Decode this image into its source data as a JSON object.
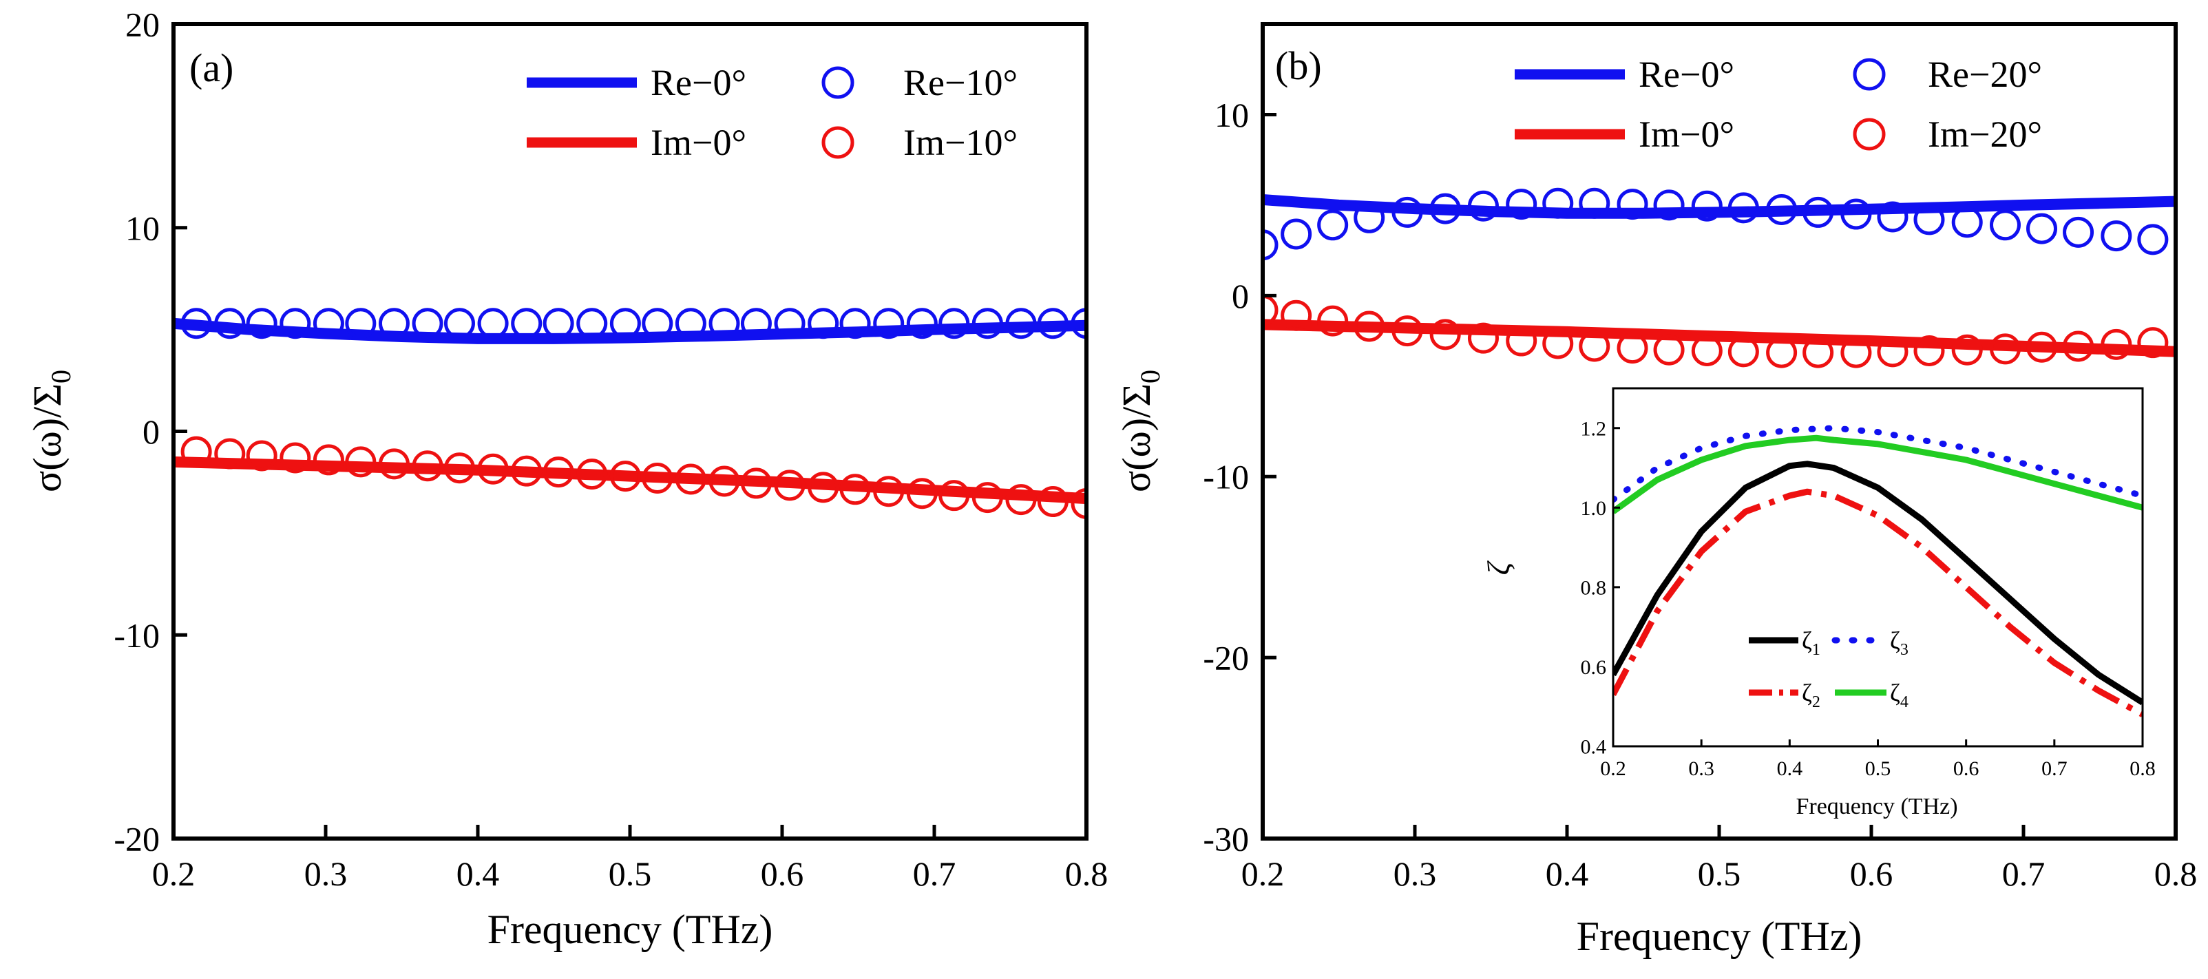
{
  "figure": {
    "panel_a": {
      "label": "(a)",
      "ylabel_main": "σ(ω)/Σ",
      "ylabel_sub": "0",
      "xlabel": "Frequency (THz)",
      "legend": [
        "Re−0°",
        "Im−0°",
        "Re−10°",
        "Im−10°"
      ]
    },
    "panel_b": {
      "label": "(b)",
      "ylabel_main": "σ(ω)/Σ",
      "ylabel_sub": "0",
      "xlabel": "Frequency (THz)",
      "legend": [
        "Re−0°",
        "Im−0°",
        "Re−20°",
        "Im−20°"
      ]
    },
    "inset": {
      "ylabel": "ζ",
      "xlabel": "Frequency (THz)",
      "legend": [
        {
          "main": "ζ",
          "sub": "1"
        },
        {
          "main": "ζ",
          "sub": "3"
        },
        {
          "main": "ζ",
          "sub": "2"
        },
        {
          "main": "ζ",
          "sub": "4"
        }
      ]
    }
  },
  "chart_data": [
    {
      "type": "line",
      "panel": "a",
      "title": "(a)",
      "xlabel": "Frequency (THz)",
      "ylabel": "σ(ω)/Σ0",
      "xlim": [
        0.2,
        0.8
      ],
      "ylim": [
        -20,
        20
      ],
      "xticks": [
        0.2,
        0.3,
        0.4,
        0.5,
        0.6,
        0.7,
        0.8
      ],
      "yticks": [
        -20,
        -10,
        0,
        10,
        20
      ],
      "legend_position": "top-right",
      "series": [
        {
          "name": "Re−0°",
          "style": "line",
          "color": "#1010f0",
          "x": [
            0.2,
            0.25,
            0.3,
            0.35,
            0.4,
            0.45,
            0.5,
            0.55,
            0.6,
            0.65,
            0.7,
            0.75,
            0.8
          ],
          "y": [
            5.3,
            5.0,
            4.8,
            4.65,
            4.55,
            4.55,
            4.6,
            4.68,
            4.78,
            4.88,
            5.0,
            5.1,
            5.2
          ]
        },
        {
          "name": "Im−0°",
          "style": "line",
          "color": "#ee1111",
          "x": [
            0.2,
            0.3,
            0.4,
            0.5,
            0.6,
            0.7,
            0.8
          ],
          "y": [
            -1.5,
            -1.7,
            -1.9,
            -2.2,
            -2.5,
            -2.9,
            -3.3
          ]
        },
        {
          "name": "Re−10°",
          "style": "circle",
          "color": "#1010f0",
          "x": [
            0.215,
            0.237,
            0.258,
            0.28,
            0.302,
            0.323,
            0.345,
            0.367,
            0.388,
            0.41,
            0.432,
            0.453,
            0.475,
            0.497,
            0.518,
            0.54,
            0.562,
            0.583,
            0.605,
            0.627,
            0.648,
            0.67,
            0.692,
            0.713,
            0.735,
            0.757,
            0.778,
            0.8
          ],
          "y": [
            5.3,
            5.3,
            5.3,
            5.3,
            5.3,
            5.3,
            5.3,
            5.3,
            5.3,
            5.3,
            5.3,
            5.3,
            5.3,
            5.3,
            5.3,
            5.3,
            5.3,
            5.3,
            5.3,
            5.3,
            5.3,
            5.3,
            5.3,
            5.3,
            5.3,
            5.3,
            5.3,
            5.3
          ]
        },
        {
          "name": "Im−10°",
          "style": "circle",
          "color": "#ee1111",
          "x": [
            0.215,
            0.237,
            0.258,
            0.28,
            0.302,
            0.323,
            0.345,
            0.367,
            0.388,
            0.41,
            0.432,
            0.453,
            0.475,
            0.497,
            0.518,
            0.54,
            0.562,
            0.583,
            0.605,
            0.627,
            0.648,
            0.67,
            0.692,
            0.713,
            0.735,
            0.757,
            0.778,
            0.8
          ],
          "y": [
            -1.0,
            -1.1,
            -1.2,
            -1.3,
            -1.4,
            -1.5,
            -1.6,
            -1.7,
            -1.8,
            -1.85,
            -1.95,
            -2.0,
            -2.1,
            -2.2,
            -2.3,
            -2.35,
            -2.45,
            -2.55,
            -2.65,
            -2.75,
            -2.85,
            -2.95,
            -3.05,
            -3.15,
            -3.25,
            -3.35,
            -3.45,
            -3.55
          ]
        }
      ]
    },
    {
      "type": "line",
      "panel": "b",
      "title": "(b)",
      "xlabel": "Frequency (THz)",
      "ylabel": "σ(ω)/Σ0",
      "xlim": [
        0.2,
        0.8
      ],
      "ylim": [
        -30,
        15
      ],
      "xticks": [
        0.2,
        0.3,
        0.4,
        0.5,
        0.6,
        0.7,
        0.8
      ],
      "yticks": [
        -30,
        -20,
        -10,
        0,
        10
      ],
      "legend_position": "top-right",
      "series": [
        {
          "name": "Re−0°",
          "style": "line",
          "color": "#1010f0",
          "x": [
            0.2,
            0.25,
            0.3,
            0.35,
            0.4,
            0.45,
            0.5,
            0.55,
            0.6,
            0.65,
            0.7,
            0.75,
            0.8
          ],
          "y": [
            5.3,
            5.0,
            4.8,
            4.65,
            4.55,
            4.55,
            4.6,
            4.68,
            4.78,
            4.88,
            5.0,
            5.1,
            5.2
          ]
        },
        {
          "name": "Im−0°",
          "style": "line",
          "color": "#ee1111",
          "x": [
            0.2,
            0.3,
            0.4,
            0.5,
            0.6,
            0.7,
            0.8
          ],
          "y": [
            -1.6,
            -1.8,
            -2.0,
            -2.25,
            -2.5,
            -2.8,
            -3.1
          ]
        },
        {
          "name": "Re−20°",
          "style": "circle",
          "color": "#1010f0",
          "x": [
            0.2,
            0.222,
            0.246,
            0.27,
            0.295,
            0.32,
            0.345,
            0.37,
            0.394,
            0.418,
            0.443,
            0.467,
            0.492,
            0.516,
            0.541,
            0.565,
            0.59,
            0.614,
            0.638,
            0.663,
            0.688,
            0.712,
            0.736,
            0.761,
            0.785
          ],
          "y": [
            2.8,
            3.4,
            3.9,
            4.3,
            4.6,
            4.8,
            4.95,
            5.05,
            5.1,
            5.1,
            5.05,
            5.0,
            4.95,
            4.85,
            4.75,
            4.6,
            4.5,
            4.35,
            4.2,
            4.05,
            3.9,
            3.7,
            3.5,
            3.3,
            3.1
          ]
        },
        {
          "name": "Im−20°",
          "style": "circle",
          "color": "#ee1111",
          "x": [
            0.2,
            0.222,
            0.246,
            0.27,
            0.295,
            0.32,
            0.345,
            0.37,
            0.394,
            0.418,
            0.443,
            0.467,
            0.492,
            0.516,
            0.541,
            0.565,
            0.59,
            0.614,
            0.638,
            0.663,
            0.688,
            0.712,
            0.736,
            0.761,
            0.785
          ],
          "y": [
            -0.8,
            -1.1,
            -1.4,
            -1.7,
            -1.95,
            -2.15,
            -2.35,
            -2.5,
            -2.65,
            -2.8,
            -2.9,
            -3.0,
            -3.05,
            -3.1,
            -3.15,
            -3.15,
            -3.15,
            -3.1,
            -3.05,
            -3.0,
            -2.95,
            -2.85,
            -2.8,
            -2.7,
            -2.6
          ]
        }
      ]
    },
    {
      "type": "line",
      "panel": "b-inset",
      "xlabel": "Frequency (THz)",
      "ylabel": "ζ",
      "xlim": [
        0.2,
        0.8
      ],
      "ylim": [
        0.4,
        1.3
      ],
      "xticks": [
        0.2,
        0.3,
        0.4,
        0.5,
        0.6,
        0.7,
        0.8
      ],
      "yticks": [
        0.4,
        0.6,
        0.8,
        1.0,
        1.2
      ],
      "legend_position": "bottom-center",
      "series": [
        {
          "name": "ζ1",
          "style": "solid",
          "color": "#000000",
          "x": [
            0.2,
            0.25,
            0.3,
            0.35,
            0.4,
            0.42,
            0.45,
            0.5,
            0.55,
            0.6,
            0.65,
            0.7,
            0.75,
            0.8
          ],
          "y": [
            0.58,
            0.78,
            0.94,
            1.05,
            1.105,
            1.11,
            1.1,
            1.05,
            0.97,
            0.87,
            0.77,
            0.67,
            0.58,
            0.51
          ]
        },
        {
          "name": "ζ2",
          "style": "dashdot",
          "color": "#ee1111",
          "x": [
            0.2,
            0.25,
            0.3,
            0.35,
            0.4,
            0.42,
            0.45,
            0.5,
            0.55,
            0.6,
            0.65,
            0.7,
            0.75,
            0.8
          ],
          "y": [
            0.53,
            0.74,
            0.89,
            0.99,
            1.03,
            1.04,
            1.03,
            0.98,
            0.9,
            0.8,
            0.7,
            0.61,
            0.54,
            0.48
          ]
        },
        {
          "name": "ζ3",
          "style": "dotted",
          "color": "#1010f0",
          "x": [
            0.2,
            0.25,
            0.3,
            0.35,
            0.4,
            0.45,
            0.5,
            0.55,
            0.6,
            0.65,
            0.7,
            0.75,
            0.8
          ],
          "y": [
            1.02,
            1.1,
            1.15,
            1.18,
            1.195,
            1.2,
            1.19,
            1.17,
            1.15,
            1.12,
            1.09,
            1.06,
            1.03
          ]
        },
        {
          "name": "ζ4",
          "style": "solid",
          "color": "#22cc22",
          "x": [
            0.2,
            0.25,
            0.3,
            0.35,
            0.4,
            0.43,
            0.45,
            0.5,
            0.55,
            0.6,
            0.65,
            0.7,
            0.75,
            0.8
          ],
          "y": [
            0.99,
            1.07,
            1.12,
            1.155,
            1.17,
            1.175,
            1.17,
            1.16,
            1.14,
            1.12,
            1.09,
            1.06,
            1.03,
            1.0
          ]
        }
      ]
    }
  ]
}
